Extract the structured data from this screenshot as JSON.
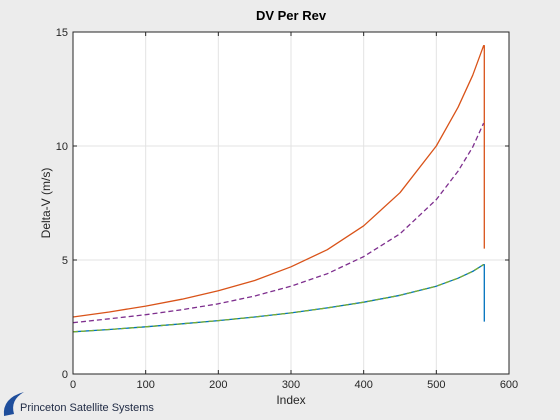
{
  "chart_data": {
    "type": "line",
    "title": "DV Per Rev",
    "xlabel": "Index",
    "ylabel": "Delta-V (m/s)",
    "xlim": [
      0,
      600
    ],
    "ylim": [
      0,
      15
    ],
    "xticks": [
      0,
      100,
      200,
      300,
      400,
      500,
      600
    ],
    "yticks": [
      0,
      5,
      10,
      15
    ],
    "grid": true,
    "legend": "none",
    "series": [
      {
        "color": "#d95319",
        "style": "solid",
        "x": [
          0,
          50,
          100,
          150,
          200,
          250,
          300,
          350,
          400,
          450,
          500,
          530,
          550,
          565,
          566,
          566
        ],
        "y": [
          2.5,
          2.72,
          2.98,
          3.28,
          3.65,
          4.1,
          4.7,
          5.45,
          6.5,
          7.95,
          10.0,
          11.7,
          13.1,
          14.4,
          14.4,
          5.5
        ]
      },
      {
        "color": "#7e2f8e",
        "style": "dashed",
        "x": [
          0,
          50,
          100,
          150,
          200,
          250,
          300,
          350,
          400,
          450,
          500,
          530,
          550,
          565
        ],
        "y": [
          2.25,
          2.42,
          2.6,
          2.82,
          3.08,
          3.42,
          3.85,
          4.4,
          5.15,
          6.15,
          7.65,
          8.9,
          9.95,
          11.0
        ]
      },
      {
        "color": "#0072bd",
        "style": "solid",
        "x": [
          0,
          50,
          100,
          150,
          200,
          250,
          300,
          350,
          400,
          450,
          500,
          530,
          550,
          565,
          566,
          566
        ],
        "y": [
          1.85,
          1.95,
          2.07,
          2.2,
          2.34,
          2.5,
          2.68,
          2.9,
          3.15,
          3.45,
          3.85,
          4.2,
          4.5,
          4.8,
          4.8,
          2.3
        ]
      },
      {
        "color": "#77ac30",
        "style": "dashed",
        "x": [
          0,
          50,
          100,
          150,
          200,
          250,
          300,
          350,
          400,
          450,
          500,
          530,
          550,
          565
        ],
        "y": [
          1.85,
          1.95,
          2.07,
          2.2,
          2.34,
          2.5,
          2.68,
          2.9,
          3.15,
          3.45,
          3.85,
          4.2,
          4.5,
          4.8
        ]
      }
    ]
  },
  "footer": {
    "logo_text": "Princeton Satellite Systems",
    "logo_color": "#1f4e9c"
  }
}
